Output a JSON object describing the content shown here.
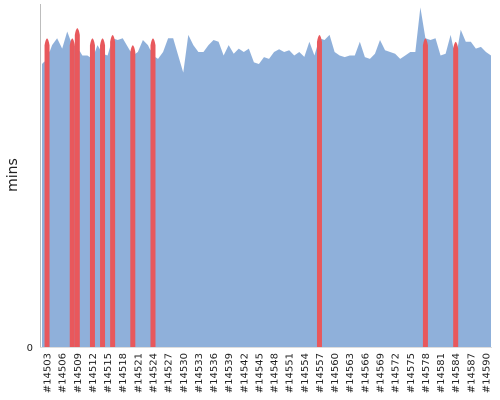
{
  "chart_data": {
    "type": "area",
    "title": "",
    "xlabel": "",
    "ylabel": "mins",
    "y_tick_labels": [
      "0"
    ],
    "ylim": [
      0,
      100
    ],
    "grid": false,
    "legend": "none",
    "colors": {
      "area": "#8fb0da",
      "highlight": "#e8585c",
      "axis": "#bdbdbd"
    },
    "x_tick_labels": [
      "#14503",
      "#14506",
      "#14509",
      "#14512",
      "#14515",
      "#14518",
      "#14521",
      "#14524",
      "#14527",
      "#14530",
      "#14533",
      "#14536",
      "#14539",
      "#14542",
      "#14545",
      "#14548",
      "#14551",
      "#14554",
      "#14557",
      "#14560",
      "#14563",
      "#14566",
      "#14569",
      "#14572",
      "#14575",
      "#14578",
      "#14581",
      "#14584",
      "#14587",
      "#14590"
    ],
    "x": [
      14502,
      14503,
      14504,
      14505,
      14506,
      14507,
      14508,
      14509,
      14510,
      14511,
      14512,
      14513,
      14514,
      14515,
      14516,
      14517,
      14518,
      14519,
      14520,
      14521,
      14522,
      14523,
      14524,
      14525,
      14526,
      14527,
      14528,
      14529,
      14530,
      14531,
      14532,
      14533,
      14534,
      14535,
      14536,
      14537,
      14538,
      14539,
      14540,
      14541,
      14542,
      14543,
      14544,
      14545,
      14546,
      14547,
      14548,
      14549,
      14550,
      14551,
      14552,
      14553,
      14554,
      14555,
      14556,
      14557,
      14558,
      14559,
      14560,
      14561,
      14562,
      14563,
      14564,
      14565,
      14566,
      14567,
      14568,
      14569,
      14570,
      14571,
      14572,
      14573,
      14574,
      14575,
      14576,
      14577,
      14578,
      14579,
      14580,
      14581,
      14582,
      14583,
      14584,
      14585,
      14586,
      14587,
      14588,
      14589,
      14590,
      14591
    ],
    "values": [
      82.5,
      84,
      88,
      90,
      87,
      92,
      88,
      87.5,
      85,
      85,
      84,
      88,
      85.5,
      85,
      90,
      89.5,
      90,
      87.5,
      85,
      86,
      89.5,
      88,
      85,
      84,
      86,
      90,
      90,
      85,
      80,
      91,
      88,
      86,
      86,
      88,
      89.5,
      89,
      85,
      88,
      85.5,
      87,
      86,
      87,
      83,
      82.5,
      84.5,
      84,
      86,
      86.8,
      86,
      86.5,
      85,
      86,
      84.6,
      89,
      85,
      90,
      89.5,
      91,
      86,
      85,
      84.5,
      85,
      85,
      89,
      84.5,
      84,
      85.5,
      89.5,
      86.5,
      86,
      85.5,
      84,
      85,
      86,
      86,
      99,
      90,
      89.5,
      90,
      85,
      85.5,
      91,
      84,
      92.5,
      89,
      89,
      87,
      87.5,
      86,
      85
    ],
    "highlight_x": [
      14503,
      14508,
      14509,
      14512,
      14514,
      14516,
      14520,
      14524,
      14557,
      14578,
      14584
    ],
    "highlight_values": [
      90,
      90,
      93,
      90,
      90,
      91,
      88,
      90,
      91,
      90,
      89
    ]
  }
}
